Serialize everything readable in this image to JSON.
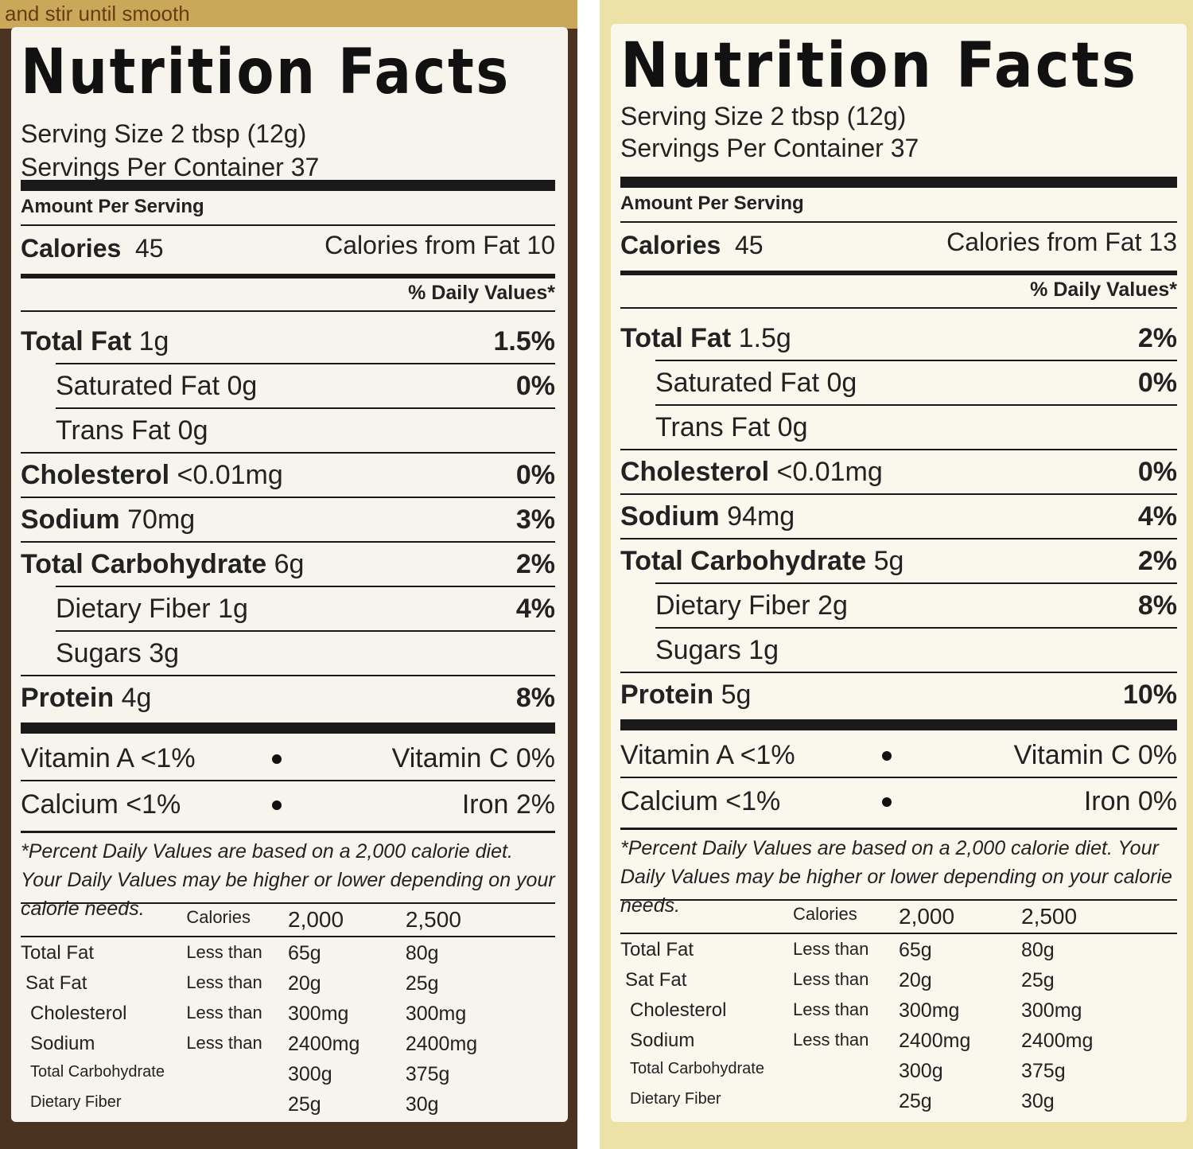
{
  "labels": [
    {
      "top_note": "and stir until smooth",
      "title": "Nutrition Facts",
      "serving_size": "Serving Size 2 tbsp (12g)",
      "servings_per_container": "Servings Per Container 37",
      "amount_per_serving": "Amount Per Serving",
      "calories_label": "Calories",
      "calories_value": "45",
      "calories_from_fat": "Calories from Fat 10",
      "daily_values_header": "% Daily Values*",
      "nutrients": [
        {
          "name": "Total Fat",
          "amount": "1g",
          "dv": "1.5%",
          "level": 0
        },
        {
          "name": "Saturated Fat",
          "amount": "0g",
          "dv": "0%",
          "level": 1
        },
        {
          "name": "Trans Fat",
          "amount": "0g",
          "level": 1
        },
        {
          "name": "Cholesterol",
          "amount": "<0.01mg",
          "dv": "0%",
          "level": 0
        },
        {
          "name": "Sodium",
          "amount": "70mg",
          "dv": "3%",
          "level": 0
        },
        {
          "name": "Total Carbohydrate",
          "amount": "6g",
          "dv": "2%",
          "level": 0
        },
        {
          "name": "Dietary Fiber",
          "amount": "1g",
          "dv": "4%",
          "level": 1
        },
        {
          "name": "Sugars",
          "amount": "3g",
          "level": 1
        },
        {
          "name": "Protein",
          "amount": "4g",
          "dv": "8%",
          "level": 0
        }
      ],
      "vitamins": [
        [
          "Vitamin A <1%",
          "Vitamin C 0%"
        ],
        [
          "Calcium <1%",
          "Iron 2%"
        ]
      ],
      "footnote": "*Percent Daily Values are based on a 2,000 calorie diet. Your Daily Values may be higher or lower depending on your calorie needs.",
      "reference_table": {
        "header": [
          "Calories",
          "2,000",
          "2,500"
        ],
        "rows": [
          {
            "name": "Total Fat",
            "qualifier": "Less than",
            "values": [
              "65g",
              "80g"
            ]
          },
          {
            "name": "Sat Fat",
            "qualifier": "Less than",
            "values": [
              "20g",
              "25g"
            ]
          },
          {
            "name": "Cholesterol",
            "qualifier": "Less than",
            "values": [
              "300mg",
              "300mg"
            ]
          },
          {
            "name": "Sodium",
            "qualifier": "Less than",
            "values": [
              "2400mg",
              "2400mg"
            ]
          },
          {
            "name": "Total Carbohydrate",
            "values": [
              "300g",
              "375g"
            ]
          },
          {
            "name": "Dietary Fiber",
            "values": [
              "25g",
              "30g"
            ]
          }
        ]
      }
    },
    {
      "title": "Nutrition Facts",
      "serving_size": "Serving Size 2 tbsp (12g)",
      "servings_per_container": "Servings Per Container 37",
      "amount_per_serving": "Amount Per Serving",
      "calories_label": "Calories",
      "calories_value": "45",
      "calories_from_fat": "Calories from Fat 13",
      "daily_values_header": "% Daily Values*",
      "nutrients": [
        {
          "name": "Total Fat",
          "amount": "1.5g",
          "dv": "2%",
          "level": 0
        },
        {
          "name": "Saturated Fat",
          "amount": "0g",
          "dv": "0%",
          "level": 1
        },
        {
          "name": "Trans Fat",
          "amount": "0g",
          "level": 1
        },
        {
          "name": "Cholesterol",
          "amount": "<0.01mg",
          "dv": "0%",
          "level": 0
        },
        {
          "name": "Sodium",
          "amount": "94mg",
          "dv": "4%",
          "level": 0
        },
        {
          "name": "Total Carbohydrate",
          "amount": "5g",
          "dv": "2%",
          "level": 0
        },
        {
          "name": "Dietary Fiber",
          "amount": "2g",
          "dv": "8%",
          "level": 1
        },
        {
          "name": "Sugars",
          "amount": "1g",
          "level": 1
        },
        {
          "name": "Protein",
          "amount": "5g",
          "dv": "10%",
          "level": 0
        }
      ],
      "vitamins": [
        [
          "Vitamin A <1%",
          "Vitamin C 0%"
        ],
        [
          "Calcium <1%",
          "Iron 0%"
        ]
      ],
      "footnote": "*Percent Daily Values are based on a 2,000 calorie diet. Your Daily Values may be higher or lower depending on your calorie needs.",
      "reference_table": {
        "header": [
          "Calories",
          "2,000",
          "2,500"
        ],
        "rows": [
          {
            "name": "Total Fat",
            "qualifier": "Less than",
            "values": [
              "65g",
              "80g"
            ]
          },
          {
            "name": "Sat Fat",
            "qualifier": "Less than",
            "values": [
              "20g",
              "25g"
            ]
          },
          {
            "name": "Cholesterol",
            "qualifier": "Less than",
            "values": [
              "300mg",
              "300mg"
            ]
          },
          {
            "name": "Sodium",
            "qualifier": "Less than",
            "values": [
              "2400mg",
              "2400mg"
            ]
          },
          {
            "name": "Total Carbohydrate",
            "values": [
              "300g",
              "375g"
            ]
          },
          {
            "name": "Dietary Fiber",
            "values": [
              "25g",
              "30g"
            ]
          }
        ]
      }
    }
  ]
}
